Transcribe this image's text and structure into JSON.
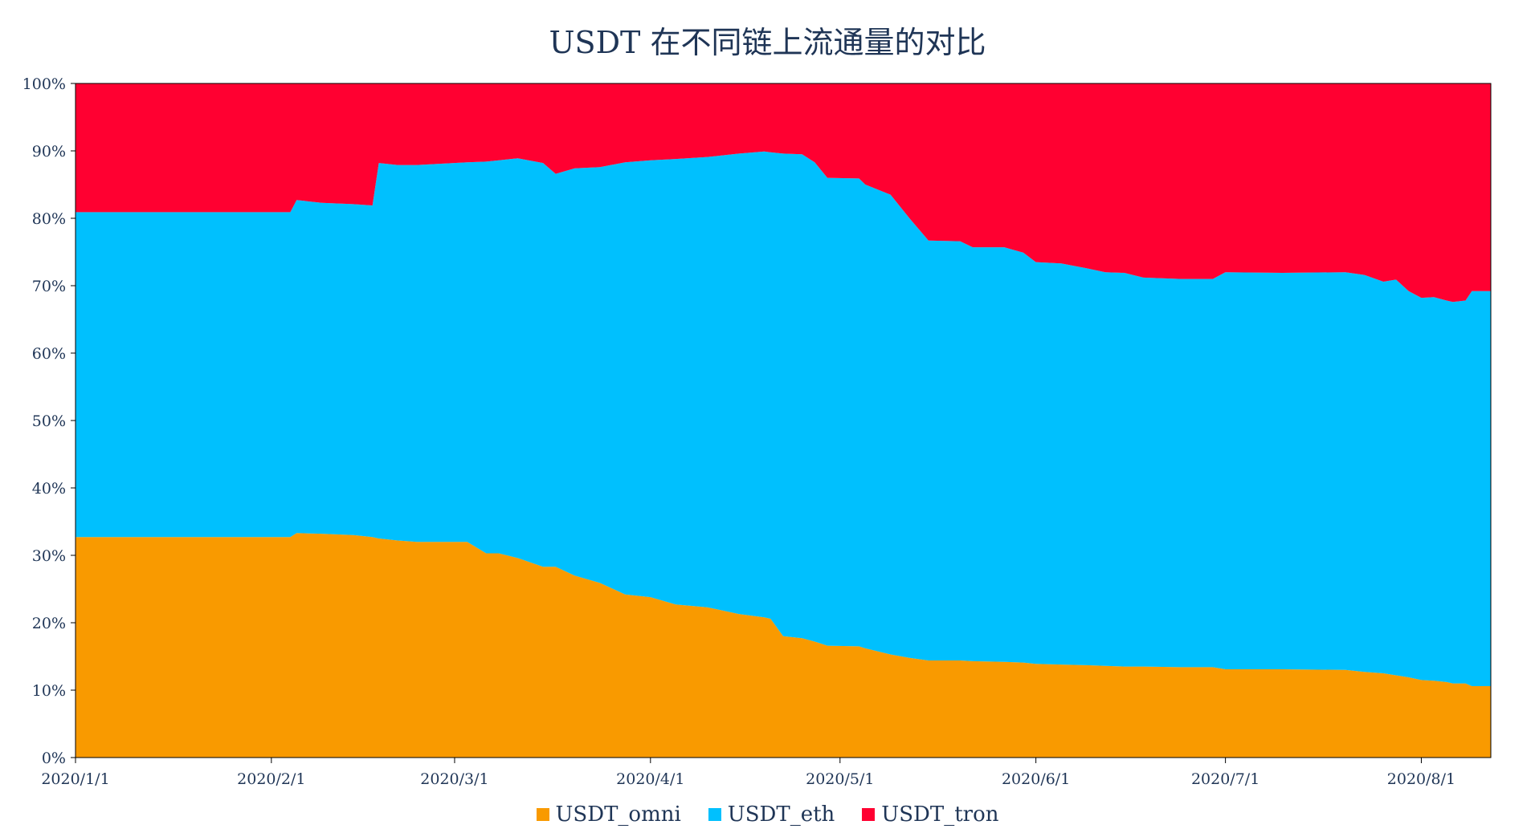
{
  "chart_data": {
    "type": "area",
    "stacked": true,
    "normalized": true,
    "title": "USDT 在不同链上流通量的对比",
    "xlabel": "",
    "ylabel": "",
    "ylim": [
      0,
      100
    ],
    "yticks": [
      "0%",
      "10%",
      "20%",
      "30%",
      "40%",
      "50%",
      "60%",
      "70%",
      "80%",
      "90%",
      "100%"
    ],
    "x_range": [
      "2020-01-01",
      "2020-08-12"
    ],
    "xticks": [
      {
        "date": "2020-01-01",
        "label": "2020/1/1"
      },
      {
        "date": "2020-02-01",
        "label": "2020/2/1"
      },
      {
        "date": "2020-03-01",
        "label": "2020/3/1"
      },
      {
        "date": "2020-04-01",
        "label": "2020/4/1"
      },
      {
        "date": "2020-05-01",
        "label": "2020/5/1"
      },
      {
        "date": "2020-06-01",
        "label": "2020/6/1"
      },
      {
        "date": "2020-07-01",
        "label": "2020/7/1"
      },
      {
        "date": "2020-08-01",
        "label": "2020/8/1"
      }
    ],
    "legend_position": "bottom",
    "grid": false,
    "x": [
      "2020-01-01",
      "2020-02-04",
      "2020-02-05",
      "2020-02-09",
      "2020-02-14",
      "2020-02-17",
      "2020-02-18",
      "2020-02-21",
      "2020-02-24",
      "2020-03-03",
      "2020-03-06",
      "2020-03-08",
      "2020-03-11",
      "2020-03-15",
      "2020-03-17",
      "2020-03-20",
      "2020-03-24",
      "2020-03-28",
      "2020-04-01",
      "2020-04-05",
      "2020-04-10",
      "2020-04-15",
      "2020-04-19",
      "2020-04-20",
      "2020-04-22",
      "2020-04-25",
      "2020-04-27",
      "2020-04-29",
      "2020-05-04",
      "2020-05-05",
      "2020-05-09",
      "2020-05-12",
      "2020-05-15",
      "2020-05-20",
      "2020-05-22",
      "2020-05-27",
      "2020-05-30",
      "2020-06-01",
      "2020-06-05",
      "2020-06-09",
      "2020-06-12",
      "2020-06-15",
      "2020-06-18",
      "2020-06-24",
      "2020-06-29",
      "2020-07-01",
      "2020-07-10",
      "2020-07-20",
      "2020-07-23",
      "2020-07-26",
      "2020-07-28",
      "2020-07-30",
      "2020-08-01",
      "2020-08-03",
      "2020-08-05",
      "2020-08-06",
      "2020-08-08",
      "2020-08-09",
      "2020-08-12"
    ],
    "series": [
      {
        "name": "USDT_omni",
        "color": "#f99a00",
        "values": [
          32.7,
          32.7,
          33.3,
          33.2,
          33.0,
          32.7,
          32.5,
          32.2,
          32.0,
          32.0,
          30.3,
          30.3,
          29.6,
          28.3,
          28.3,
          27.0,
          25.9,
          24.2,
          23.8,
          22.7,
          22.3,
          21.3,
          20.8,
          20.6,
          18.0,
          17.7,
          17.2,
          16.6,
          16.5,
          16.2,
          15.3,
          14.8,
          14.4,
          14.4,
          14.3,
          14.2,
          14.1,
          13.9,
          13.8,
          13.7,
          13.6,
          13.5,
          13.5,
          13.4,
          13.4,
          13.1,
          13.1,
          13.0,
          12.7,
          12.5,
          12.2,
          11.9,
          11.5,
          11.4,
          11.2,
          11.0,
          11.0,
          10.6,
          10.6
        ]
      },
      {
        "name": "USDT_eth",
        "color": "#00c0fe",
        "values": [
          48.2,
          48.2,
          49.4,
          49.1,
          49.1,
          49.2,
          55.7,
          55.7,
          55.9,
          56.3,
          58.1,
          58.3,
          59.3,
          59.9,
          58.3,
          60.4,
          61.7,
          64.1,
          64.8,
          66.1,
          66.8,
          68.3,
          69.1,
          69.2,
          71.6,
          71.8,
          71.1,
          69.4,
          69.4,
          68.8,
          68.2,
          65.2,
          62.3,
          62.2,
          61.4,
          61.5,
          60.8,
          59.6,
          59.5,
          58.9,
          58.4,
          58.4,
          57.7,
          57.6,
          57.6,
          58.9,
          58.8,
          59.0,
          58.9,
          58.1,
          58.7,
          57.3,
          56.7,
          56.9,
          56.6,
          56.6,
          56.8,
          58.6,
          58.6
        ]
      },
      {
        "name": "USDT_tron",
        "color": "#ff0031",
        "values": [
          19.1,
          19.1,
          17.3,
          17.7,
          17.9,
          18.1,
          11.8,
          12.1,
          12.1,
          11.7,
          11.6,
          11.4,
          11.1,
          11.8,
          13.4,
          12.6,
          12.4,
          11.7,
          11.4,
          11.2,
          10.9,
          10.4,
          10.1,
          10.2,
          10.4,
          10.5,
          11.7,
          14.0,
          14.1,
          15.0,
          16.5,
          20.0,
          23.3,
          23.4,
          24.3,
          24.3,
          25.1,
          26.5,
          26.7,
          27.4,
          28.0,
          28.1,
          28.8,
          29.0,
          29.0,
          28.0,
          28.1,
          28.0,
          28.4,
          29.4,
          29.1,
          30.8,
          31.8,
          31.7,
          32.2,
          32.4,
          32.2,
          30.8,
          30.8
        ]
      }
    ]
  }
}
